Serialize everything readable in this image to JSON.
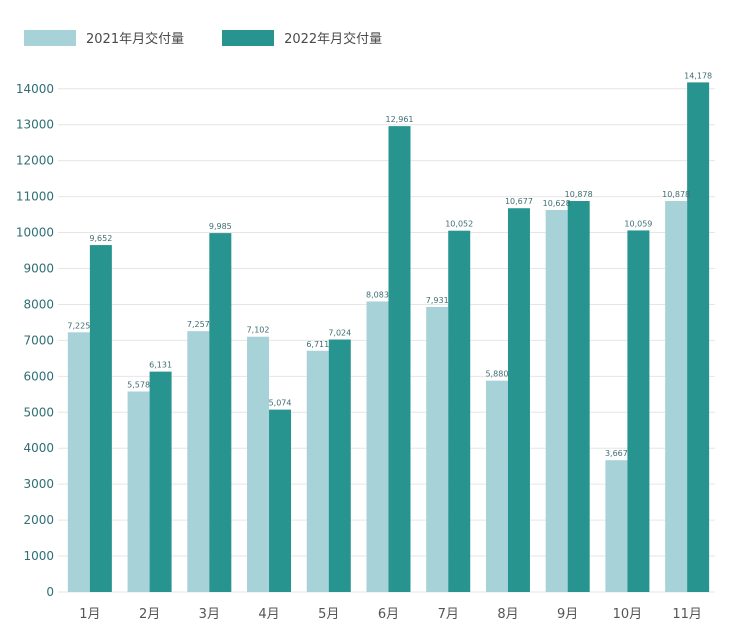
{
  "chart_data": {
    "type": "bar",
    "categories": [
      "1月",
      "2月",
      "3月",
      "4月",
      "5月",
      "6月",
      "7月",
      "8月",
      "9月",
      "10月",
      "11月"
    ],
    "series": [
      {
        "name": "2021年月交付量",
        "color": "#a6d2d8",
        "values": [
          7225,
          5578,
          7257,
          7102,
          6711,
          8083,
          7931,
          5880,
          10628,
          3667,
          10878
        ],
        "labels": [
          "7,225",
          "5,578",
          "7,257",
          "7,102",
          "6,711",
          "8,083",
          "7,931",
          "5,880",
          "10,628",
          "3,667",
          "10,878"
        ]
      },
      {
        "name": "2022年月交付量",
        "color": "#27948f",
        "values": [
          9652,
          6131,
          9985,
          5074,
          7024,
          12961,
          10052,
          10677,
          10878,
          10059,
          14178
        ],
        "labels": [
          "9,652",
          "6,131",
          "9,985",
          "5,074",
          "7,024",
          "12,961",
          "10,052",
          "10,677",
          "10,878",
          "10,059",
          "14,178"
        ]
      }
    ],
    "yticks": [
      0,
      1000,
      2000,
      3000,
      4000,
      5000,
      6000,
      7000,
      8000,
      9000,
      10000,
      11000,
      12000,
      13000,
      14000
    ],
    "ylim": [
      0,
      14300
    ],
    "grid": true,
    "legend_position": "top-left",
    "title": "",
    "xlabel": "",
    "ylabel": ""
  }
}
